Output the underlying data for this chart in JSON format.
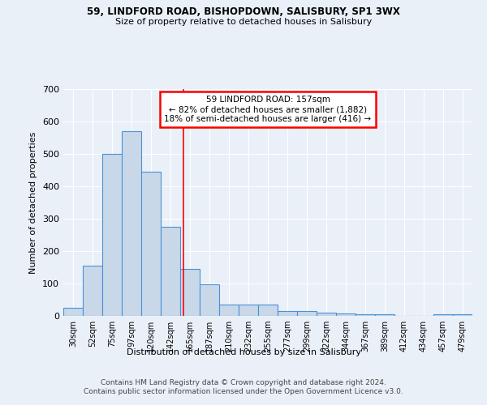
{
  "title1": "59, LINDFORD ROAD, BISHOPDOWN, SALISBURY, SP1 3WX",
  "title2": "Size of property relative to detached houses in Salisbury",
  "xlabel": "Distribution of detached houses by size in Salisbury",
  "ylabel": "Number of detached properties",
  "categories": [
    "30sqm",
    "52sqm",
    "75sqm",
    "97sqm",
    "120sqm",
    "142sqm",
    "165sqm",
    "187sqm",
    "210sqm",
    "232sqm",
    "255sqm",
    "277sqm",
    "299sqm",
    "322sqm",
    "344sqm",
    "367sqm",
    "389sqm",
    "412sqm",
    "434sqm",
    "457sqm",
    "479sqm"
  ],
  "values": [
    25,
    155,
    500,
    570,
    445,
    275,
    145,
    98,
    35,
    35,
    35,
    14,
    14,
    10,
    7,
    5,
    5,
    0,
    0,
    5,
    5
  ],
  "bar_color": "#c8d8e8",
  "bar_edge_color": "#4a90d9",
  "red_line_x": 6.0,
  "annotation_line1": "59 LINDFORD ROAD: 157sqm",
  "annotation_line2": "← 82% of detached houses are smaller (1,882)",
  "annotation_line3": "18% of semi-detached houses are larger (416) →",
  "annotation_box_color": "white",
  "annotation_box_edge": "red",
  "ylim": [
    0,
    700
  ],
  "yticks": [
    0,
    100,
    200,
    300,
    400,
    500,
    600,
    700
  ],
  "background_color": "#eaf0f8",
  "grid_color": "white",
  "footer1": "Contains HM Land Registry data © Crown copyright and database right 2024.",
  "footer2": "Contains public sector information licensed under the Open Government Licence v3.0."
}
